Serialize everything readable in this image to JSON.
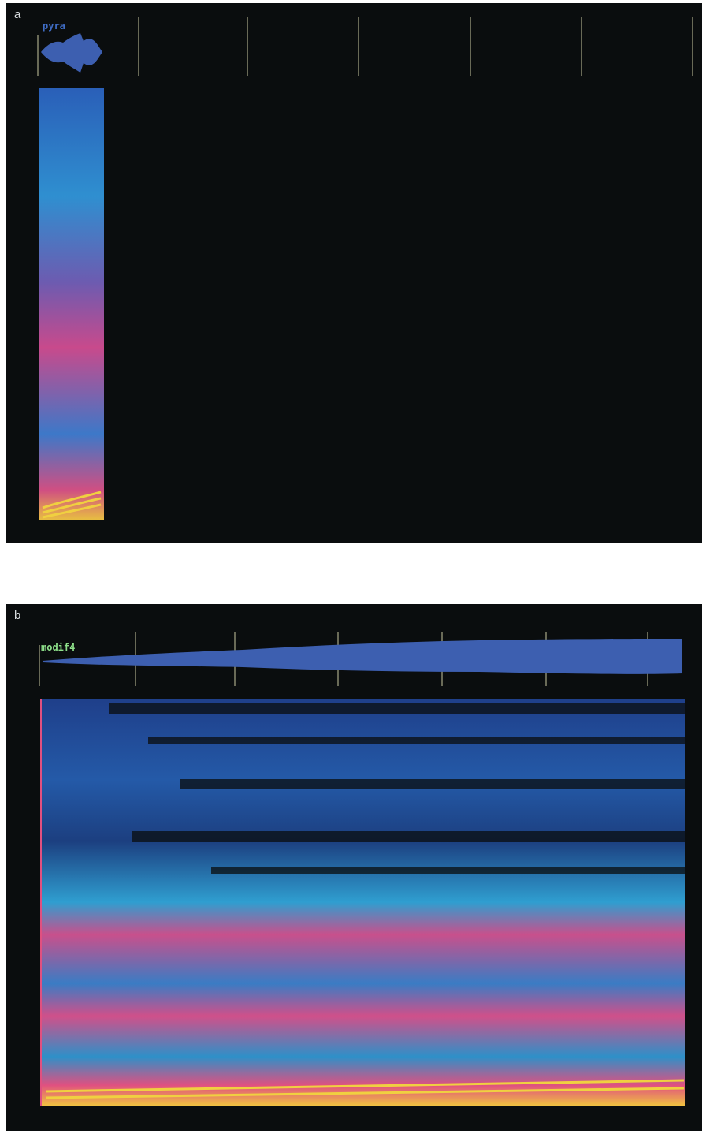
{
  "panels": {
    "a": {
      "letter": "a",
      "track_label": "pyra"
    },
    "b": {
      "letter": "b",
      "track_label": "modif4"
    }
  },
  "colors": {
    "background": "#0a0d0e",
    "waveform": "#3d5fb0",
    "tick": "#c8c8a0",
    "spectrum_low": "#1f4aa0",
    "spectrum_mid": "#2fa8d8",
    "spectrum_high": "#e0508a",
    "spectrum_peak": "#f0d040"
  }
}
